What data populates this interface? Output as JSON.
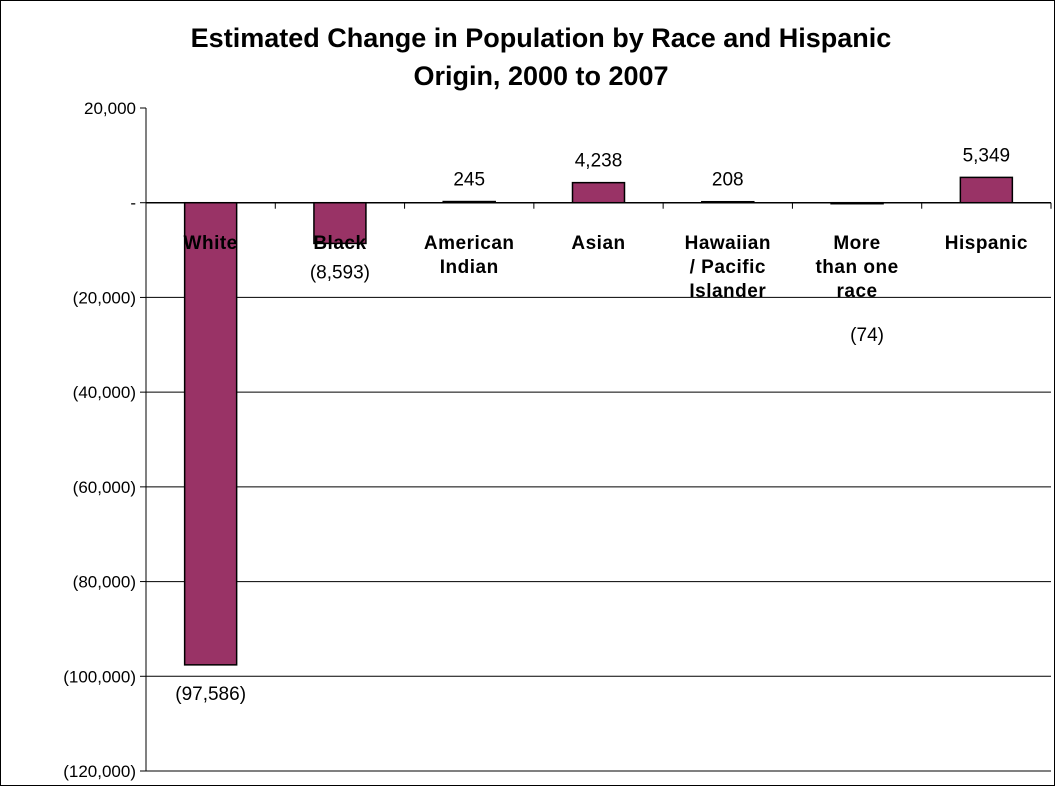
{
  "chart_data": {
    "type": "bar",
    "title_lines": [
      "Estimated Change in Population by Race and Hispanic",
      "Origin, 2000 to 2007"
    ],
    "categories": [
      [
        "White"
      ],
      [
        "Black"
      ],
      [
        "American",
        "Indian"
      ],
      [
        "Asian"
      ],
      [
        "Hawaiian",
        "/ Pacific",
        "Islander"
      ],
      [
        "More",
        "than one",
        "race"
      ],
      [
        "Hispanic"
      ]
    ],
    "values": [
      -97586,
      -8593,
      245,
      4238,
      208,
      -74,
      5349
    ],
    "data_labels": [
      "(97,586)",
      "(8,593)",
      "245",
      "4,238",
      "208",
      "(74)",
      "5,349"
    ],
    "ylim": [
      -120000,
      20000
    ],
    "y_ticks": [
      20000,
      0,
      -20000,
      -40000,
      -60000,
      -80000,
      -100000,
      -120000
    ],
    "y_tick_labels": [
      "20,000",
      "-",
      "(20,000)",
      "(40,000)",
      "(60,000)",
      "(80,000)",
      "(100,000)",
      "(120,000)"
    ],
    "grid": true,
    "legend": "none",
    "bar_color": "#993366",
    "xlabel": "",
    "ylabel": ""
  }
}
